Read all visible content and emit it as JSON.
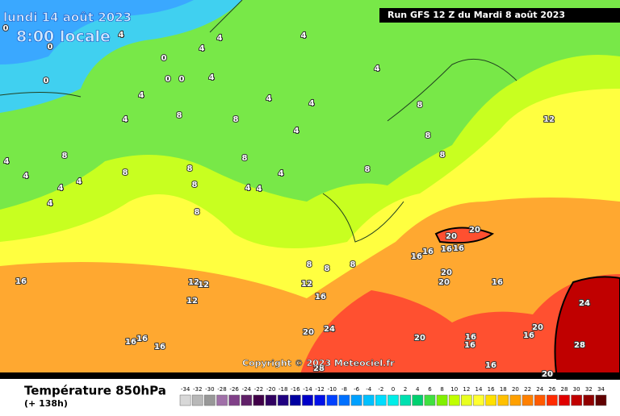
{
  "header": {
    "date": "lundi 14 août 2023",
    "time": "8:00 locale",
    "run": "Run GFS 12 Z du Mardi 8 août 2023"
  },
  "copyright": "Copyright © 2023 Meteociel.fr",
  "footer": {
    "title": "Température 850hPa",
    "lead": "(+ 138h)"
  },
  "colorbar": {
    "values": [
      -34,
      -32,
      -30,
      -28,
      -26,
      -24,
      -22,
      -20,
      -18,
      -16,
      -14,
      -12,
      -10,
      -8,
      -6,
      -4,
      -2,
      0,
      2,
      4,
      6,
      8,
      10,
      12,
      14,
      16,
      18,
      20,
      22,
      24,
      26,
      28,
      30,
      32,
      34
    ],
    "colors": [
      "#d8d8d8",
      "#b8b8b8",
      "#989898",
      "#a070a8",
      "#804088",
      "#602068",
      "#400048",
      "#300060",
      "#200080",
      "#0000a0",
      "#0000c8",
      "#0010e8",
      "#0040ff",
      "#0070ff",
      "#00a0ff",
      "#00c0ff",
      "#00dcff",
      "#00eee8",
      "#00e0b0",
      "#00d070",
      "#40e040",
      "#80f000",
      "#c0ff00",
      "#e8ff20",
      "#ffff30",
      "#ffe000",
      "#ffc000",
      "#ffa000",
      "#ff8000",
      "#ff5a00",
      "#ff2a00",
      "#e00000",
      "#c00000",
      "#900000",
      "#600000"
    ]
  },
  "contour_labels": [
    0,
    0,
    0,
    0,
    0,
    0,
    4,
    4,
    4,
    4,
    4,
    4,
    4,
    4,
    4,
    4,
    4,
    4,
    4,
    4,
    4,
    4,
    4,
    4,
    4,
    8,
    8,
    8,
    8,
    8,
    8,
    8,
    8,
    8,
    8,
    8,
    8,
    8,
    8,
    8,
    12,
    12,
    12,
    12,
    12,
    16,
    16,
    16,
    16,
    16,
    16,
    16,
    16,
    16,
    16,
    16,
    16,
    16,
    16,
    20,
    20,
    20,
    20,
    20,
    20,
    20,
    20,
    24,
    24,
    28,
    28
  ]
}
